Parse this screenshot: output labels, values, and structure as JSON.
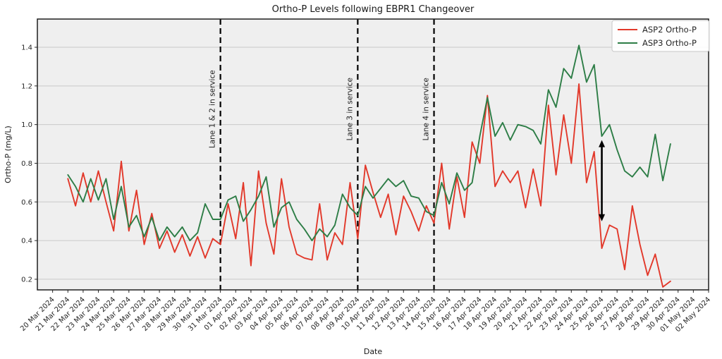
{
  "title": "Ortho-P Levels following EBPR1 Changeover",
  "axes": {
    "x_label": "Date",
    "y_label": "Ortho-P (mg/L)",
    "y_ticks": [
      0.2,
      0.4,
      0.6,
      0.8,
      1.0,
      1.2,
      1.4
    ],
    "y_range": [
      0.145,
      1.546
    ],
    "x_range_day_offsets": [
      -1,
      43
    ],
    "grid": "horizontal",
    "x_tick_labels": [
      "20 Mar 2024",
      "21 Mar 2024",
      "22 Mar 2024",
      "23 Mar 2024",
      "24 Mar 2024",
      "25 Mar 2024",
      "26 Mar 2024",
      "27 Mar 2024",
      "28 Mar 2024",
      "29 Mar 2024",
      "30 Mar 2024",
      "31 Mar 2024",
      "01 Apr 2024",
      "02 Apr 2024",
      "03 Apr 2024",
      "04 Apr 2024",
      "05 Apr 2024",
      "06 Apr 2024",
      "07 Apr 2024",
      "08 Apr 2024",
      "09 Apr 2024",
      "10 Apr 2024",
      "11 Apr 2024",
      "12 Apr 2024",
      "13 Apr 2024",
      "14 Apr 2024",
      "15 Apr 2024",
      "16 Apr 2024",
      "17 Apr 2024",
      "18 Apr 2024",
      "19 Apr 2024",
      "20 Apr 2024",
      "21 Apr 2024",
      "22 Apr 2024",
      "23 Apr 2024",
      "24 Apr 2024",
      "25 Apr 2024",
      "26 Apr 2024",
      "27 Apr 2024",
      "28 Apr 2024",
      "29 Apr 2024",
      "30 Apr 2024",
      "01 May 2024",
      "02 May 2024"
    ]
  },
  "legend": {
    "items": [
      {
        "label": "ASP2 Ortho-P",
        "color": "#e2382a"
      },
      {
        "label": "ASP3 Ortho-P",
        "color": "#2d7d46"
      }
    ]
  },
  "annotations": {
    "vlines": [
      {
        "label": "Lane 1 & 2 in service",
        "day_offset": 11,
        "at_tick": "31 Mar 2024"
      },
      {
        "label": "Lane 3 in service",
        "day_offset": 20,
        "at_tick": "09 Apr 2024"
      },
      {
        "label": "Lane 4 in service",
        "day_offset": 25,
        "at_tick": "14 Apr 2024"
      }
    ],
    "arrow": {
      "day_offset": 36,
      "value_from": 0.5,
      "value_to": 0.92,
      "color": "#000000",
      "style": "double-headed-vertical"
    }
  },
  "chart_data": {
    "type": "line",
    "title": "Ortho-P Levels following EBPR1 Changeover",
    "xlabel": "Date",
    "ylabel": "Ortho-P (mg/L)",
    "x_unit": "days after 20 Mar 2024, sampled every 0.5 day (values estimated from plot)",
    "x_start": 1.0,
    "x_step": 0.5,
    "ylim": [
      0.145,
      1.546
    ],
    "legend_position": "upper right",
    "series": [
      {
        "name": "ASP2 Ortho-P",
        "color": "#e2382a",
        "values": [
          0.72,
          0.58,
          0.75,
          0.6,
          0.76,
          0.6,
          0.45,
          0.81,
          0.45,
          0.66,
          0.38,
          0.54,
          0.36,
          0.45,
          0.34,
          0.43,
          0.32,
          0.42,
          0.31,
          0.41,
          0.38,
          0.59,
          0.41,
          0.7,
          0.27,
          0.76,
          0.49,
          0.33,
          0.72,
          0.47,
          0.33,
          0.31,
          0.3,
          0.59,
          0.3,
          0.44,
          0.38,
          0.7,
          0.41,
          0.79,
          0.65,
          0.52,
          0.64,
          0.43,
          0.63,
          0.55,
          0.45,
          0.58,
          0.49,
          0.8,
          0.46,
          0.73,
          0.52,
          0.91,
          0.8,
          1.15,
          0.68,
          0.76,
          0.7,
          0.76,
          0.57,
          0.77,
          0.58,
          1.1,
          0.74,
          1.05,
          0.8,
          1.21,
          0.7,
          0.86,
          0.36,
          0.48,
          0.46,
          0.25,
          0.58,
          0.38,
          0.22,
          0.33,
          0.16,
          0.19
        ]
      },
      {
        "name": "ASP3 Ortho-P",
        "color": "#2d7d46",
        "values": [
          0.74,
          0.68,
          0.6,
          0.72,
          0.61,
          0.72,
          0.51,
          0.68,
          0.47,
          0.53,
          0.42,
          0.52,
          0.4,
          0.47,
          0.42,
          0.47,
          0.4,
          0.44,
          0.59,
          0.51,
          0.51,
          0.61,
          0.63,
          0.5,
          0.56,
          0.63,
          0.73,
          0.47,
          0.57,
          0.6,
          0.51,
          0.46,
          0.4,
          0.46,
          0.42,
          0.48,
          0.64,
          0.57,
          0.53,
          0.68,
          0.62,
          0.67,
          0.72,
          0.68,
          0.71,
          0.63,
          0.62,
          0.55,
          0.53,
          0.7,
          0.59,
          0.75,
          0.66,
          0.7,
          0.94,
          1.14,
          0.94,
          1.01,
          0.92,
          1.0,
          0.99,
          0.97,
          0.9,
          1.18,
          1.09,
          1.29,
          1.24,
          1.41,
          1.22,
          1.31,
          0.94,
          1.0,
          0.87,
          0.76,
          0.73,
          0.78,
          0.73,
          0.95,
          0.71,
          0.9
        ]
      }
    ]
  }
}
